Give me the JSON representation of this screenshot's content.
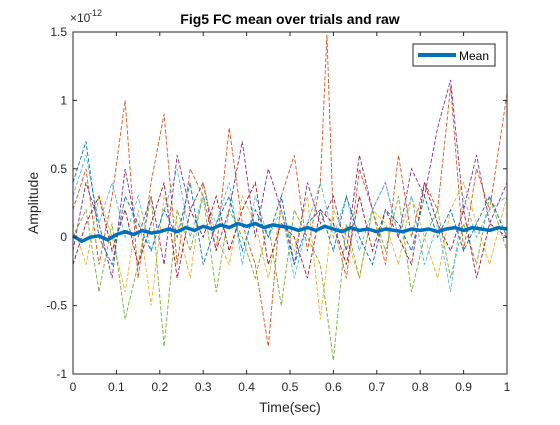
{
  "chart_data": {
    "type": "line",
    "title": "Fig5 FC mean over trials and raw",
    "xlabel": "Time(sec)",
    "ylabel": "Amplitude",
    "y_exponent_label": "×10",
    "y_exponent": "-12",
    "xlim": [
      0,
      1
    ],
    "ylim": [
      -1,
      1.5
    ],
    "x_ticks": [
      0,
      0.1,
      0.2,
      0.3,
      0.4,
      0.5,
      0.6,
      0.7,
      0.8,
      0.9,
      1
    ],
    "x_tick_labels": [
      "0",
      "0.1",
      "0.2",
      "0.3",
      "0.4",
      "0.5",
      "0.6",
      "0.7",
      "0.8",
      "0.9",
      "1"
    ],
    "y_ticks": [
      -1,
      -0.5,
      0,
      0.5,
      1,
      1.5
    ],
    "y_tick_labels": [
      "-1",
      "-0.5",
      "0",
      "0.5",
      "1",
      "1.5"
    ],
    "grid": false,
    "legend_position": "top-right",
    "legend_entries": [
      "Mean"
    ],
    "mean_color": "#0072BD",
    "trial_colors": [
      "#D95319",
      "#EDB120",
      "#7E2F8E",
      "#77AC30",
      "#4DBEEE",
      "#A2142F",
      "#0072BD"
    ],
    "series": [
      {
        "name": "Mean",
        "style": "solid-thick",
        "x": [
          0,
          0.02,
          0.04,
          0.06,
          0.08,
          0.1,
          0.12,
          0.14,
          0.16,
          0.18,
          0.2,
          0.22,
          0.24,
          0.26,
          0.28,
          0.3,
          0.32,
          0.34,
          0.36,
          0.38,
          0.4,
          0.42,
          0.44,
          0.46,
          0.48,
          0.5,
          0.52,
          0.54,
          0.56,
          0.58,
          0.6,
          0.62,
          0.64,
          0.66,
          0.68,
          0.7,
          0.72,
          0.74,
          0.76,
          0.78,
          0.8,
          0.82,
          0.84,
          0.86,
          0.88,
          0.9,
          0.92,
          0.94,
          0.96,
          0.98,
          1.0
        ],
        "y": [
          0.01,
          -0.03,
          0.0,
          0.01,
          -0.02,
          0.02,
          0.04,
          0.02,
          0.05,
          0.03,
          0.04,
          0.06,
          0.04,
          0.07,
          0.05,
          0.08,
          0.06,
          0.09,
          0.07,
          0.1,
          0.08,
          0.1,
          0.07,
          0.09,
          0.08,
          0.07,
          0.05,
          0.07,
          0.05,
          0.08,
          0.06,
          0.04,
          0.07,
          0.05,
          0.06,
          0.04,
          0.06,
          0.05,
          0.04,
          0.06,
          0.05,
          0.06,
          0.04,
          0.06,
          0.07,
          0.05,
          0.07,
          0.06,
          0.05,
          0.07,
          0.06
        ]
      },
      {
        "style": "dashed",
        "x": [
          0,
          0.03,
          0.06,
          0.09,
          0.12,
          0.15,
          0.18,
          0.21,
          0.24,
          0.27,
          0.3,
          0.33,
          0.36,
          0.39,
          0.42,
          0.45,
          0.48,
          0.51,
          0.54,
          0.57,
          0.585,
          0.6,
          0.63,
          0.66,
          0.69,
          0.72,
          0.75,
          0.78,
          0.81,
          0.84,
          0.87,
          0.9,
          0.93,
          0.96,
          1.0
        ],
        "y": [
          0.2,
          0.5,
          -0.2,
          0.3,
          1.0,
          -0.3,
          0.4,
          0.9,
          -0.2,
          0.5,
          0.3,
          -0.1,
          0.8,
          0.1,
          -0.2,
          -0.8,
          0.3,
          0.6,
          -0.1,
          0.4,
          1.48,
          0.1,
          -0.3,
          0.5,
          0.2,
          -0.2,
          0.6,
          0.0,
          0.4,
          0.2,
          1.1,
          -0.1,
          0.5,
          0.2,
          1.05
        ]
      },
      {
        "style": "dashed",
        "x": [
          0,
          0.03,
          0.06,
          0.09,
          0.12,
          0.15,
          0.18,
          0.21,
          0.24,
          0.27,
          0.3,
          0.33,
          0.36,
          0.39,
          0.42,
          0.45,
          0.48,
          0.51,
          0.54,
          0.57,
          0.6,
          0.63,
          0.66,
          0.69,
          0.72,
          0.75,
          0.78,
          0.81,
          0.84,
          0.87,
          0.9,
          0.93,
          0.96,
          1.0
        ],
        "y": [
          0.1,
          -0.2,
          0.3,
          0.0,
          -0.4,
          0.2,
          -0.5,
          0.3,
          0.1,
          -0.3,
          0.4,
          0.0,
          -0.2,
          0.3,
          0.1,
          -0.3,
          0.2,
          -0.1,
          0.3,
          -0.6,
          0.2,
          0.0,
          -0.3,
          0.2,
          0.1,
          -0.2,
          0.3,
          0.0,
          -0.3,
          0.2,
          0.4,
          0.1,
          -0.2,
          0.3
        ]
      },
      {
        "style": "dashed",
        "x": [
          0,
          0.03,
          0.06,
          0.09,
          0.12,
          0.15,
          0.18,
          0.21,
          0.24,
          0.27,
          0.3,
          0.33,
          0.36,
          0.39,
          0.42,
          0.45,
          0.48,
          0.51,
          0.54,
          0.57,
          0.6,
          0.63,
          0.66,
          0.69,
          0.72,
          0.75,
          0.78,
          0.81,
          0.84,
          0.87,
          0.9,
          0.93,
          0.96,
          1.0
        ],
        "y": [
          -0.1,
          0.4,
          0.1,
          -0.3,
          0.5,
          0.0,
          0.3,
          -0.2,
          0.6,
          0.2,
          0.4,
          -0.1,
          0.2,
          0.7,
          0.0,
          0.5,
          0.2,
          -0.2,
          0.4,
          0.1,
          0.3,
          -0.1,
          0.6,
          0.2,
          0.4,
          0.0,
          0.5,
          0.3,
          0.8,
          1.15,
          0.2,
          0.6,
          0.1,
          0.4
        ]
      },
      {
        "style": "dashed",
        "x": [
          0,
          0.03,
          0.06,
          0.09,
          0.12,
          0.15,
          0.18,
          0.21,
          0.24,
          0.27,
          0.3,
          0.33,
          0.36,
          0.39,
          0.42,
          0.45,
          0.48,
          0.51,
          0.54,
          0.57,
          0.6,
          0.63,
          0.66,
          0.69,
          0.72,
          0.75,
          0.78,
          0.81,
          0.84,
          0.87,
          0.9,
          0.93,
          0.96,
          1.0
        ],
        "y": [
          0.0,
          0.2,
          -0.4,
          0.1,
          -0.6,
          -0.2,
          0.3,
          -0.8,
          0.2,
          -0.1,
          0.3,
          -0.4,
          0.2,
          0.0,
          -0.3,
          0.1,
          -0.5,
          0.2,
          0.0,
          -0.2,
          -0.9,
          0.1,
          -0.3,
          0.2,
          -0.1,
          0.3,
          -0.4,
          0.0,
          0.2,
          -0.3,
          0.1,
          -0.2,
          0.3,
          -0.1
        ]
      },
      {
        "style": "dashed",
        "x": [
          0,
          0.03,
          0.06,
          0.09,
          0.12,
          0.15,
          0.18,
          0.21,
          0.24,
          0.27,
          0.3,
          0.33,
          0.36,
          0.39,
          0.42,
          0.45,
          0.48,
          0.51,
          0.54,
          0.57,
          0.6,
          0.63,
          0.66,
          0.69,
          0.72,
          0.75,
          0.78,
          0.81,
          0.84,
          0.87,
          0.9,
          0.93,
          0.96,
          1.0
        ],
        "y": [
          0.3,
          0.6,
          0.1,
          0.4,
          0.0,
          0.3,
          -0.1,
          0.2,
          0.5,
          0.0,
          0.3,
          0.1,
          0.4,
          -0.2,
          0.3,
          0.0,
          0.2,
          -0.3,
          0.1,
          0.4,
          0.0,
          0.3,
          -0.1,
          0.2,
          0.4,
          0.0,
          0.3,
          -0.2,
          0.1,
          -0.4,
          0.3,
          0.0,
          0.2,
          0.3
        ]
      },
      {
        "style": "dashed",
        "x": [
          0,
          0.03,
          0.06,
          0.09,
          0.12,
          0.15,
          0.18,
          0.21,
          0.24,
          0.27,
          0.3,
          0.33,
          0.36,
          0.39,
          0.42,
          0.45,
          0.48,
          0.51,
          0.54,
          0.57,
          0.6,
          0.63,
          0.66,
          0.69,
          0.72,
          0.75,
          0.78,
          0.81,
          0.84,
          0.87,
          0.9,
          0.93,
          0.96,
          1.0
        ],
        "y": [
          -0.2,
          0.1,
          0.3,
          -0.1,
          0.2,
          -0.2,
          0.1,
          0.4,
          -0.3,
          0.2,
          0.0,
          0.3,
          -0.1,
          0.2,
          0.4,
          -0.2,
          0.1,
          0.0,
          -0.3,
          0.2,
          0.1,
          -0.2,
          0.3,
          -0.1,
          0.2,
          0.0,
          -0.2,
          0.4,
          0.1,
          -0.1,
          0.2,
          -0.3,
          0.1,
          0.0
        ]
      },
      {
        "style": "dashed",
        "x": [
          0,
          0.03,
          0.06,
          0.09,
          0.12,
          0.15,
          0.18,
          0.21,
          0.24,
          0.27,
          0.3,
          0.33,
          0.36,
          0.39,
          0.42,
          0.45,
          0.48,
          0.51,
          0.54,
          0.57,
          0.6,
          0.63,
          0.66,
          0.69,
          0.72,
          0.75,
          0.78,
          0.81,
          0.84,
          0.87,
          0.9,
          0.93,
          0.96,
          1.0
        ],
        "y": [
          0.4,
          0.7,
          0.0,
          -0.2,
          0.3,
          0.1,
          -0.1,
          0.2,
          0.0,
          0.4,
          -0.2,
          0.1,
          0.3,
          -0.1,
          0.2,
          0.0,
          0.3,
          -0.2,
          0.1,
          0.2,
          -0.1,
          0.3,
          0.0,
          -0.2,
          0.2,
          0.1,
          -0.1,
          0.3,
          0.0,
          0.2,
          -0.1,
          0.1,
          0.3,
          0.0
        ]
      }
    ]
  }
}
